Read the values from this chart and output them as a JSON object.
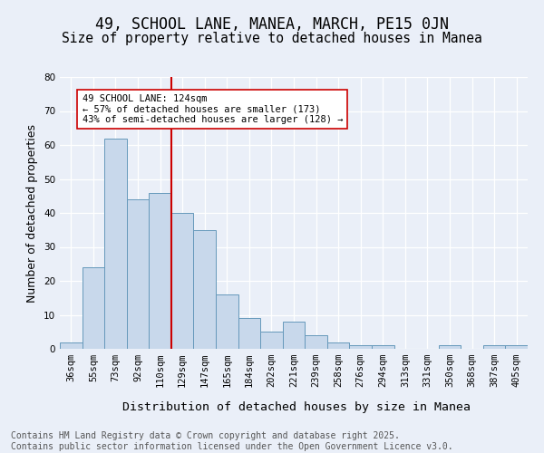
{
  "title_line1": "49, SCHOOL LANE, MANEA, MARCH, PE15 0JN",
  "title_line2": "Size of property relative to detached houses in Manea",
  "xlabel": "Distribution of detached houses by size in Manea",
  "ylabel": "Number of detached properties",
  "categories": [
    "36sqm",
    "55sqm",
    "73sqm",
    "92sqm",
    "110sqm",
    "129sqm",
    "147sqm",
    "165sqm",
    "184sqm",
    "202sqm",
    "221sqm",
    "239sqm",
    "258sqm",
    "276sqm",
    "294sqm",
    "313sqm",
    "331sqm",
    "350sqm",
    "368sqm",
    "387sqm",
    "405sqm"
  ],
  "values": [
    2,
    24,
    62,
    44,
    46,
    40,
    35,
    16,
    9,
    5,
    8,
    4,
    2,
    1,
    1,
    0,
    0,
    1,
    0,
    1,
    1
  ],
  "bar_color": "#c8d8eb",
  "bar_edge_color": "#6699bb",
  "vline_idx": 5,
  "vline_color": "#cc0000",
  "annotation_text": "49 SCHOOL LANE: 124sqm\n← 57% of detached houses are smaller (173)\n43% of semi-detached houses are larger (128) →",
  "annotation_box_color": "#ffffff",
  "annotation_box_edge_color": "#cc0000",
  "ylim": [
    0,
    80
  ],
  "yticks": [
    0,
    10,
    20,
    30,
    40,
    50,
    60,
    70,
    80
  ],
  "background_color": "#eaeff8",
  "grid_color": "#ffffff",
  "footer_text": "Contains HM Land Registry data © Crown copyright and database right 2025.\nContains public sector information licensed under the Open Government Licence v3.0.",
  "title_fontsize": 12,
  "subtitle_fontsize": 10.5,
  "xlabel_fontsize": 9.5,
  "ylabel_fontsize": 9,
  "tick_fontsize": 7.5,
  "footer_fontsize": 7
}
